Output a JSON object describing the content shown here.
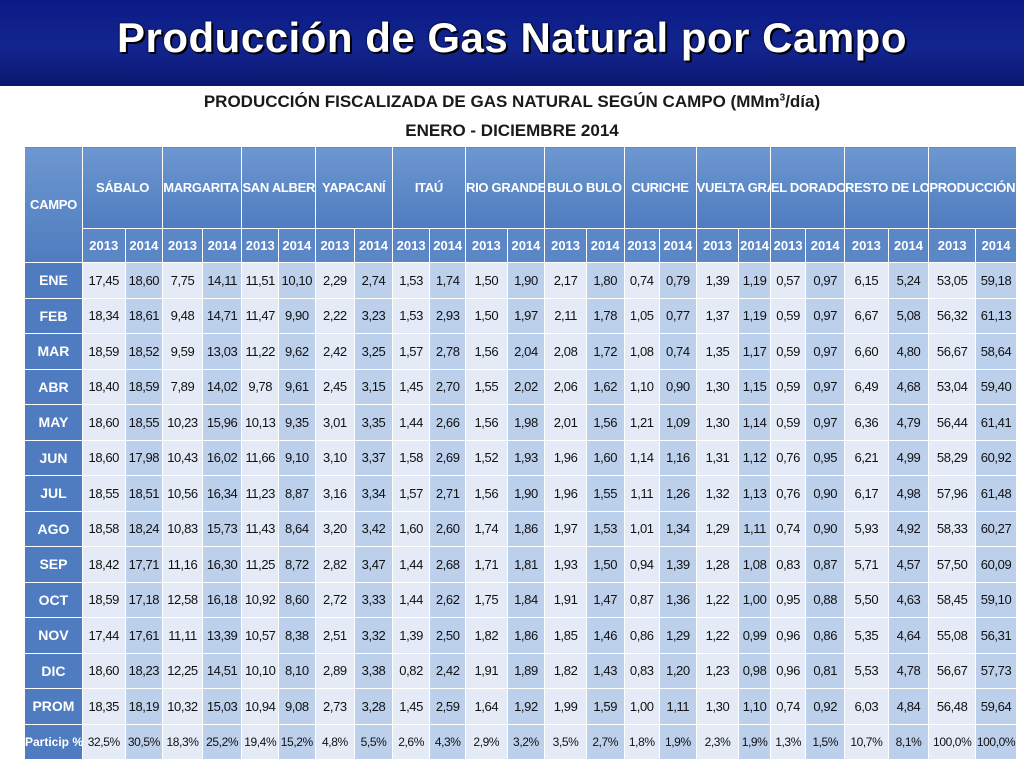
{
  "slide": {
    "title": "Producción de Gas Natural por Campo",
    "colors": {
      "banner": "#13258f",
      "header": "#5b87c7",
      "cell_light": "#e4ebf6",
      "cell_dark": "#bccfeb"
    }
  },
  "chart_data": {
    "type": "table",
    "title": "PRODUCCIÓN FISCALIZADA DE GAS NATURAL SEGÚN  CAMPO (MMm",
    "title_superscript": "3",
    "title_suffix": "/día)",
    "subtitle": "ENERO - DICIEMBRE 2014",
    "row_header_label": "CAMPO",
    "campos": [
      "SÁBALO",
      "MARGARITA - HUACAYA",
      "SAN ALBERTO",
      "YAPACANÍ",
      "ITAÚ",
      "RIO GRANDE",
      "BULO BULO",
      "CURICHE",
      "VUELTA GRANDE",
      "EL DORADO SUR",
      "RESTO DE LOS CAMPOS",
      "PRODUCCIÓN TOTAL"
    ],
    "years": [
      "2013",
      "2014"
    ],
    "rows": [
      {
        "label": "ENE",
        "values": [
          "17,45",
          "18,60",
          "7,75",
          "14,11",
          "11,51",
          "10,10",
          "2,29",
          "2,74",
          "1,53",
          "1,74",
          "1,50",
          "1,90",
          "2,17",
          "1,80",
          "0,74",
          "0,79",
          "1,39",
          "1,19",
          "0,57",
          "0,97",
          "6,15",
          "5,24",
          "53,05",
          "59,18"
        ]
      },
      {
        "label": "FEB",
        "values": [
          "18,34",
          "18,61",
          "9,48",
          "14,71",
          "11,47",
          "9,90",
          "2,22",
          "3,23",
          "1,53",
          "2,93",
          "1,50",
          "1,97",
          "2,11",
          "1,78",
          "1,05",
          "0,77",
          "1,37",
          "1,19",
          "0,59",
          "0,97",
          "6,67",
          "5,08",
          "56,32",
          "61,13"
        ]
      },
      {
        "label": "MAR",
        "values": [
          "18,59",
          "18,52",
          "9,59",
          "13,03",
          "11,22",
          "9,62",
          "2,42",
          "3,25",
          "1,57",
          "2,78",
          "1,56",
          "2,04",
          "2,08",
          "1,72",
          "1,08",
          "0,74",
          "1,35",
          "1,17",
          "0,59",
          "0,97",
          "6,60",
          "4,80",
          "56,67",
          "58,64"
        ]
      },
      {
        "label": "ABR",
        "values": [
          "18,40",
          "18,59",
          "7,89",
          "14,02",
          "9,78",
          "9,61",
          "2,45",
          "3,15",
          "1,45",
          "2,70",
          "1,55",
          "2,02",
          "2,06",
          "1,62",
          "1,10",
          "0,90",
          "1,30",
          "1,15",
          "0,59",
          "0,97",
          "6,49",
          "4,68",
          "53,04",
          "59,40"
        ]
      },
      {
        "label": "MAY",
        "values": [
          "18,60",
          "18,55",
          "10,23",
          "15,96",
          "10,13",
          "9,35",
          "3,01",
          "3,35",
          "1,44",
          "2,66",
          "1,56",
          "1,98",
          "2,01",
          "1,56",
          "1,21",
          "1,09",
          "1,30",
          "1,14",
          "0,59",
          "0,97",
          "6,36",
          "4,79",
          "56,44",
          "61,41"
        ]
      },
      {
        "label": "JUN",
        "values": [
          "18,60",
          "17,98",
          "10,43",
          "16,02",
          "11,66",
          "9,10",
          "3,10",
          "3,37",
          "1,58",
          "2,69",
          "1,52",
          "1,93",
          "1,96",
          "1,60",
          "1,14",
          "1,16",
          "1,31",
          "1,12",
          "0,76",
          "0,95",
          "6,21",
          "4,99",
          "58,29",
          "60,92"
        ]
      },
      {
        "label": "JUL",
        "values": [
          "18,55",
          "18,51",
          "10,56",
          "16,34",
          "11,23",
          "8,87",
          "3,16",
          "3,34",
          "1,57",
          "2,71",
          "1,56",
          "1,90",
          "1,96",
          "1,55",
          "1,11",
          "1,26",
          "1,32",
          "1,13",
          "0,76",
          "0,90",
          "6,17",
          "4,98",
          "57,96",
          "61,48"
        ]
      },
      {
        "label": "AGO",
        "values": [
          "18,58",
          "18,24",
          "10,83",
          "15,73",
          "11,43",
          "8,64",
          "3,20",
          "3,42",
          "1,60",
          "2,60",
          "1,74",
          "1,86",
          "1,97",
          "1,53",
          "1,01",
          "1,34",
          "1,29",
          "1,11",
          "0,74",
          "0,90",
          "5,93",
          "4,92",
          "58,33",
          "60,27"
        ]
      },
      {
        "label": "SEP",
        "values": [
          "18,42",
          "17,71",
          "11,16",
          "16,30",
          "11,25",
          "8,72",
          "2,82",
          "3,47",
          "1,44",
          "2,68",
          "1,71",
          "1,81",
          "1,93",
          "1,50",
          "0,94",
          "1,39",
          "1,28",
          "1,08",
          "0,83",
          "0,87",
          "5,71",
          "4,57",
          "57,50",
          "60,09"
        ]
      },
      {
        "label": "OCT",
        "values": [
          "18,59",
          "17,18",
          "12,58",
          "16,18",
          "10,92",
          "8,60",
          "2,72",
          "3,33",
          "1,44",
          "2,62",
          "1,75",
          "1,84",
          "1,91",
          "1,47",
          "0,87",
          "1,36",
          "1,22",
          "1,00",
          "0,95",
          "0,88",
          "5,50",
          "4,63",
          "58,45",
          "59,10"
        ]
      },
      {
        "label": "NOV",
        "values": [
          "17,44",
          "17,61",
          "11,11",
          "13,39",
          "10,57",
          "8,38",
          "2,51",
          "3,32",
          "1,39",
          "2,50",
          "1,82",
          "1,86",
          "1,85",
          "1,46",
          "0,86",
          "1,29",
          "1,22",
          "0,99",
          "0,96",
          "0,86",
          "5,35",
          "4,64",
          "55,08",
          "56,31"
        ]
      },
      {
        "label": "DIC",
        "values": [
          "18,60",
          "18,23",
          "12,25",
          "14,51",
          "10,10",
          "8,10",
          "2,89",
          "3,38",
          "0,82",
          "2,42",
          "1,91",
          "1,89",
          "1,82",
          "1,43",
          "0,83",
          "1,20",
          "1,23",
          "0,98",
          "0,96",
          "0,81",
          "5,53",
          "4,78",
          "56,67",
          "57,73"
        ]
      },
      {
        "label": "PROM",
        "values": [
          "18,35",
          "18,19",
          "10,32",
          "15,03",
          "10,94",
          "9,08",
          "2,73",
          "3,28",
          "1,45",
          "2,59",
          "1,64",
          "1,92",
          "1,99",
          "1,59",
          "1,00",
          "1,11",
          "1,30",
          "1,10",
          "0,74",
          "0,92",
          "6,03",
          "4,84",
          "56,48",
          "59,64"
        ]
      },
      {
        "label": "Particip %",
        "values": [
          "32,5%",
          "30,5%",
          "18,3%",
          "25,2%",
          "19,4%",
          "15,2%",
          "4,8%",
          "5,5%",
          "2,6%",
          "4,3%",
          "2,9%",
          "3,2%",
          "3,5%",
          "2,7%",
          "1,8%",
          "1,9%",
          "2,3%",
          "1,9%",
          "1,3%",
          "1,5%",
          "10,7%",
          "8,1%",
          "100,0%",
          "100,0%"
        ]
      }
    ]
  }
}
